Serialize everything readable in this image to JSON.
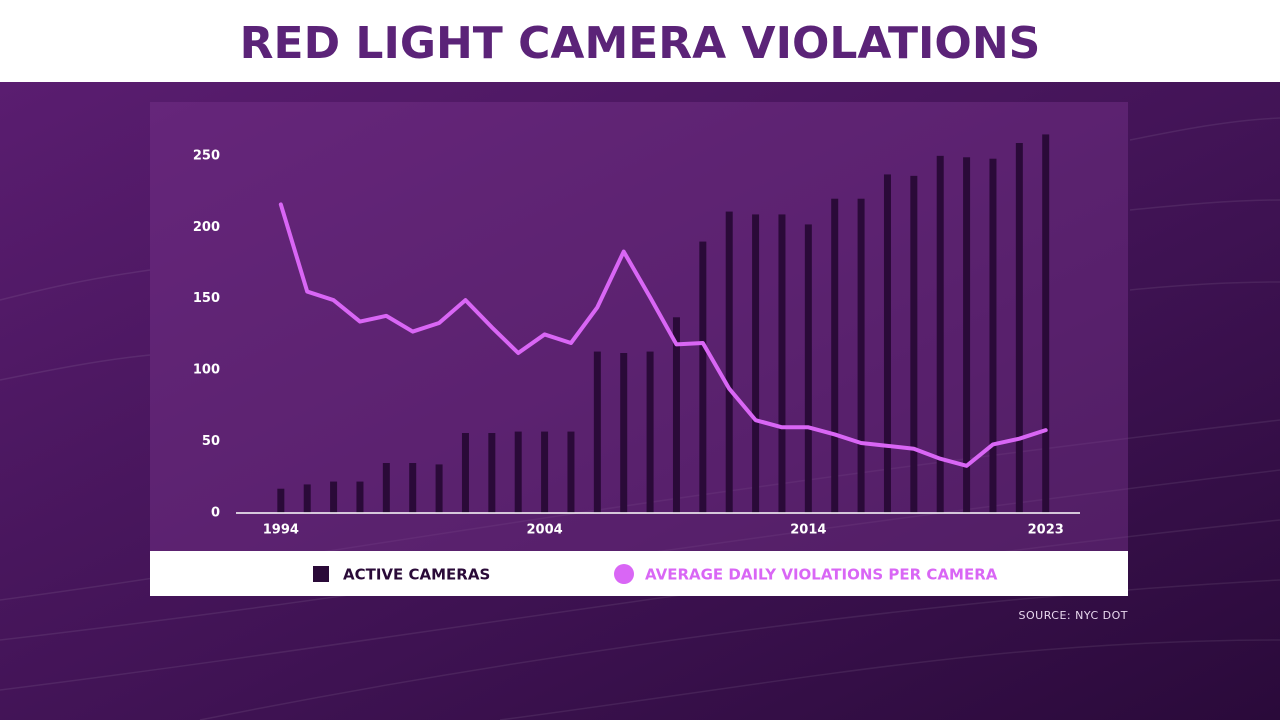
{
  "chart_data": {
    "type": "bar-line",
    "title": "RED LIGHT CAMERA VIOLATIONS",
    "source": "SOURCE: NYC DOT",
    "x": [
      1994,
      1995,
      1996,
      1997,
      1998,
      1999,
      2000,
      2001,
      2002,
      2003,
      2004,
      2005,
      2006,
      2007,
      2008,
      2009,
      2010,
      2011,
      2012,
      2013,
      2014,
      2015,
      2016,
      2017,
      2018,
      2019,
      2020,
      2021,
      2022,
      2023
    ],
    "xlim": [
      1992.3,
      2024.3
    ],
    "xticks": [
      1994,
      2004,
      2014,
      2023
    ],
    "ylim": [
      0,
      280
    ],
    "yticks": [
      0,
      50,
      100,
      150,
      200,
      250
    ],
    "series": [
      {
        "name": "ACTIVE CAMERAS",
        "type": "bar",
        "color": "#2a0a38",
        "values": [
          17,
          20,
          22,
          22,
          35,
          35,
          34,
          56,
          56,
          57,
          57,
          57,
          113,
          112,
          113,
          137,
          190,
          211,
          209,
          209,
          202,
          220,
          220,
          237,
          236,
          250,
          249,
          248,
          259,
          265
        ]
      },
      {
        "name": "AVERAGE DAILY VIOLATIONS PER CAMERA",
        "type": "line",
        "color": "#d966f5",
        "values": [
          216,
          155,
          149,
          134,
          138,
          127,
          133,
          149,
          130,
          112,
          125,
          119,
          144,
          183,
          151,
          118,
          119,
          87,
          65,
          60,
          60,
          55,
          49,
          47,
          45,
          38,
          33,
          48,
          52,
          58
        ]
      }
    ]
  }
}
